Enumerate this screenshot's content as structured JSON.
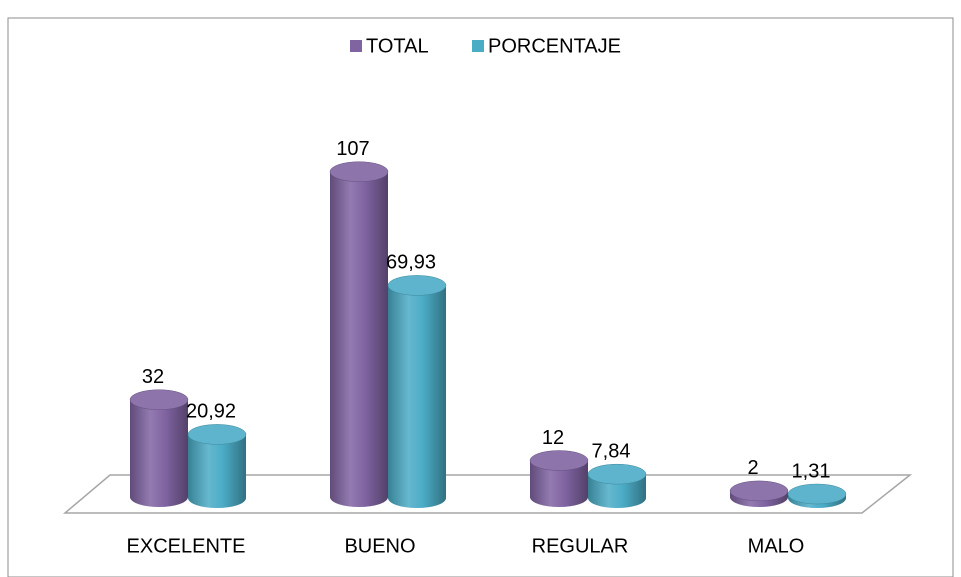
{
  "chart_data": {
    "type": "bar",
    "categories": [
      "EXCELENTE",
      "BUENO",
      "REGULAR",
      "MALO"
    ],
    "series": [
      {
        "name": "TOTAL",
        "color": "#8064a2",
        "values": [
          32,
          107,
          12,
          2
        ]
      },
      {
        "name": "PORCENTAJE",
        "color": "#4bacc6",
        "values": [
          20.92,
          69.93,
          7.84,
          1.31
        ],
        "value_labels": [
          "20,92",
          "69,93",
          "7,84",
          "1,31"
        ]
      }
    ],
    "legend": "top"
  }
}
